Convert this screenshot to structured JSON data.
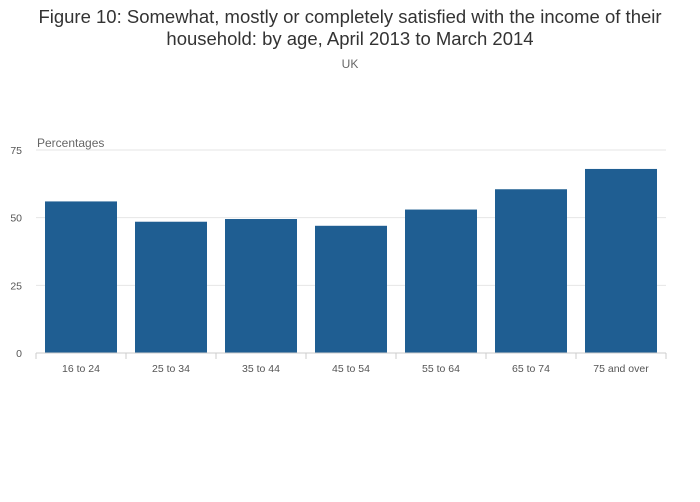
{
  "title": "Figure 10: Somewhat, mostly or completely satisfied with the income of their household: by age, April 2013 to March 2014",
  "subtitle": "UK",
  "colors": {
    "bar": "#1f5e92",
    "grid": "#e6e6e6",
    "axis": "#cccccc",
    "text": "#333333"
  },
  "chart_data": {
    "type": "bar",
    "title": "Figure 10: Somewhat, mostly or completely satisfied with the income of their household: by age, April 2013 to March 2014",
    "subtitle": "UK",
    "xlabel": "",
    "ylabel": "Percentages",
    "categories": [
      "16 to 24",
      "25 to 34",
      "35 to 44",
      "45 to 54",
      "55 to 64",
      "65 to 74",
      "75 and over"
    ],
    "values": [
      56,
      48.5,
      49.5,
      47,
      53,
      60.5,
      68
    ],
    "ylim": [
      0,
      75
    ],
    "yticks": [
      0,
      25,
      50,
      75
    ],
    "grid": true,
    "legend": "none"
  }
}
